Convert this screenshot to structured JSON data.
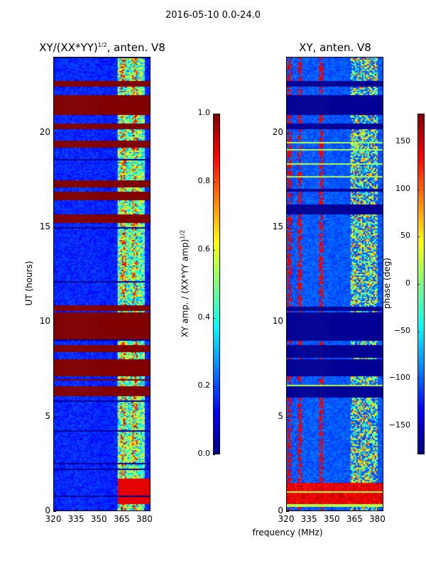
{
  "suptitle": "2016-05-10 0.0-24.0",
  "chart_data": [
    {
      "type": "heatmap",
      "title": "XY/(XX*YY)",
      "title_sup": "1/2",
      "title_suffix": ", anten. V8",
      "xlabel": "frequency (MHz)",
      "ylabel": "UT (hours)",
      "xlim": [
        320,
        384
      ],
      "ylim": [
        0,
        24
      ],
      "xticks": [
        "320",
        "335",
        "350",
        "365",
        "380"
      ],
      "yticks": [
        "0",
        "5",
        "10",
        "15",
        "20"
      ],
      "colorbar": {
        "label": "XY amp. / (XX*YY amp)",
        "label_sup": "1/2",
        "range": [
          0.0,
          1.0
        ],
        "ticks": [
          "0.0",
          "0.2",
          "0.4",
          "0.6",
          "0.8",
          "1.0"
        ],
        "colormap": "jet"
      },
      "flagged_hours": [
        [
          6.1,
          6.6
        ],
        [
          6.9,
          7.0
        ],
        [
          7.1,
          8.0
        ],
        [
          8.4,
          8.8
        ],
        [
          9.1,
          10.5
        ],
        [
          10.6,
          10.9
        ],
        [
          15.2,
          15.7
        ],
        [
          16.4,
          16.9
        ],
        [
          17.1,
          17.5
        ],
        [
          19.2,
          19.6
        ],
        [
          20.2,
          20.5
        ],
        [
          20.9,
          22.0
        ],
        [
          22.4,
          22.7
        ]
      ],
      "high_band_mhz": [
        362,
        380
      ],
      "base_value": 0.15,
      "high_band_value": 0.55
    },
    {
      "type": "heatmap",
      "title": "XY, anten. V8",
      "xlabel": "frequency (MHz)",
      "ylabel": "",
      "xlim": [
        320,
        384
      ],
      "ylim": [
        0,
        24
      ],
      "xticks": [
        "320",
        "335",
        "350",
        "365",
        "380"
      ],
      "yticks": [
        "0",
        "5",
        "10",
        "15",
        "20"
      ],
      "colorbar": {
        "label": "phase (deg)",
        "range": [
          -180,
          180
        ],
        "ticks": [
          "−150",
          "−100",
          "−50",
          "0",
          "50",
          "100",
          "150"
        ],
        "tick_values": [
          -150,
          -100,
          -50,
          0,
          50,
          100,
          150
        ],
        "colormap": "jet"
      },
      "flagged_hours": [
        [
          6.0,
          6.6
        ],
        [
          7.1,
          8.0
        ],
        [
          8.1,
          8.8
        ],
        [
          9.0,
          10.5
        ],
        [
          10.6,
          10.8
        ],
        [
          15.7,
          16.2
        ],
        [
          16.9,
          17.0
        ],
        [
          20.2,
          20.5
        ],
        [
          20.9,
          22.0
        ],
        [
          22.4,
          22.7
        ]
      ],
      "base_value": -120,
      "red_columns_mhz": [
        322,
        329,
        343
      ],
      "high_band_mhz": [
        362,
        380
      ],
      "high_band_value": 80
    }
  ]
}
